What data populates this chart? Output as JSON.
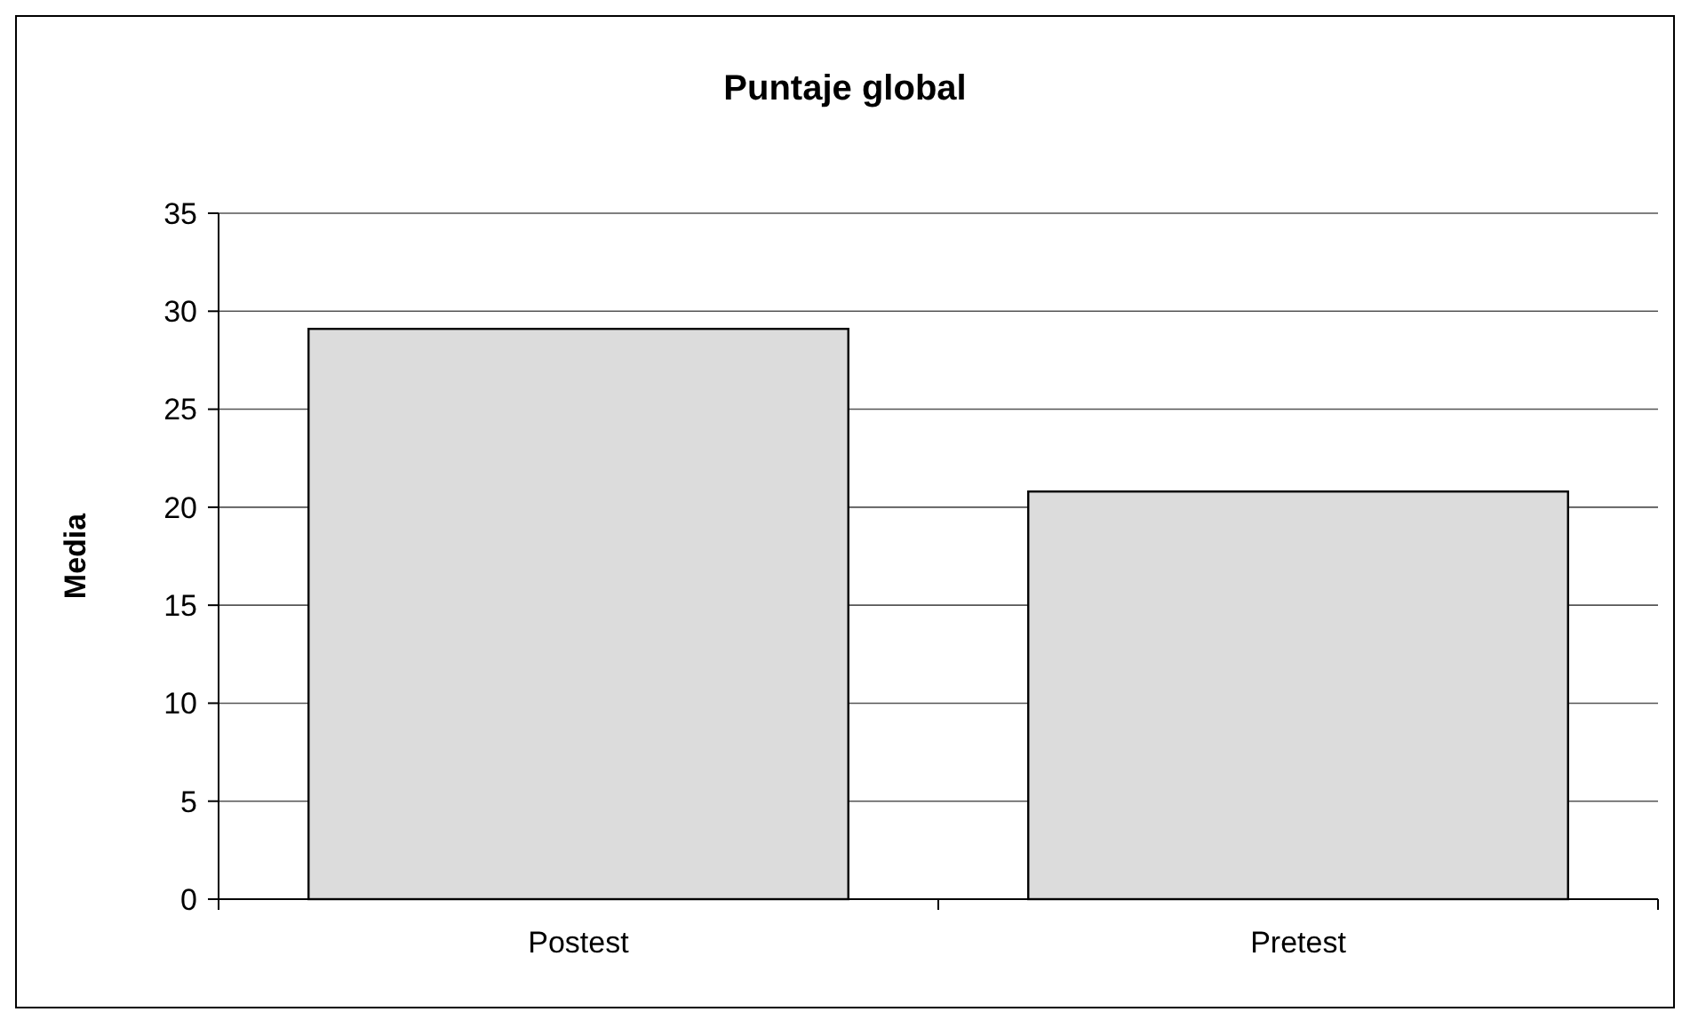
{
  "chart_data": {
    "type": "bar",
    "title": "Puntaje global",
    "ylabel": "Media",
    "categories": [
      "Postest",
      "Pretest"
    ],
    "values": [
      29.1,
      20.8
    ],
    "color": "#dcdcdc",
    "ylim": [
      0,
      35
    ],
    "yticks": [
      0,
      5,
      10,
      15,
      20,
      25,
      30,
      35
    ],
    "grid": "y"
  }
}
